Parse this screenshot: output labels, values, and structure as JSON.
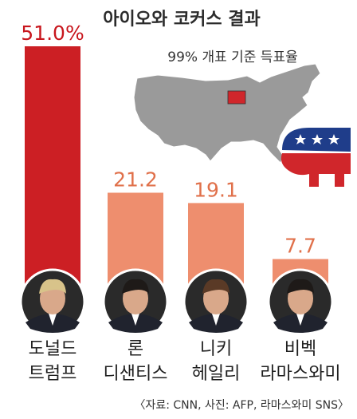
{
  "chart_data": {
    "type": "bar",
    "title": "아이오와 코커스 결과",
    "subtitle": "99% 개표 기준 득표율",
    "categories": [
      {
        "line1": "도널드",
        "line2": "트럼프"
      },
      {
        "line1": "론",
        "line2": "디샌티스"
      },
      {
        "line1": "니키",
        "line2": "헤일리"
      },
      {
        "line1": "비벡",
        "line2": "라마스와미"
      }
    ],
    "values": [
      51.0,
      21.2,
      19.1,
      7.7
    ],
    "value_labels": [
      "51.0%",
      "21.2",
      "19.1",
      "7.7"
    ],
    "ylim": [
      0,
      51.0
    ],
    "colors": {
      "leader_bar": "#cc1f24",
      "other_bar": "#ee8e6e",
      "leader_label": "#c8161d",
      "other_label": "#e0704a",
      "map_fill": "#9a9a9a",
      "map_highlight": "#d0262b",
      "gop_red": "#d0262b",
      "gop_blue": "#1f3d8a"
    },
    "legend": "none",
    "grid": false,
    "source": "〈자료: CNN, 사진: AFP, 라마스와미 SNS〉",
    "icons": [
      "us-map-icon",
      "iowa-highlight-icon",
      "gop-elephant-icon",
      "candidate-portrait-icon"
    ]
  }
}
